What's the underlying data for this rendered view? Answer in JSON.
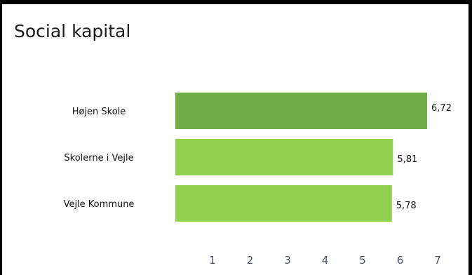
{
  "chart_data": {
    "type": "bar",
    "orientation": "horizontal",
    "title": "Social kapital",
    "xlabel": "",
    "ylabel": "",
    "categories": [
      "Højen Skole",
      "Skolerne i Vejle",
      "Vejle Kommune"
    ],
    "values": [
      6.72,
      5.81,
      5.78
    ],
    "data_labels": [
      "6,72",
      "5,81",
      "5,78"
    ],
    "xlim": [
      0,
      7
    ],
    "x_ticks": [
      1,
      2,
      3,
      4,
      5,
      6,
      7
    ],
    "x_tick_labels": [
      "1",
      "2",
      "3",
      "4",
      "5",
      "6",
      "7"
    ],
    "grid": false,
    "colors": [
      "#70ad47",
      "#92d050",
      "#92d050"
    ]
  }
}
